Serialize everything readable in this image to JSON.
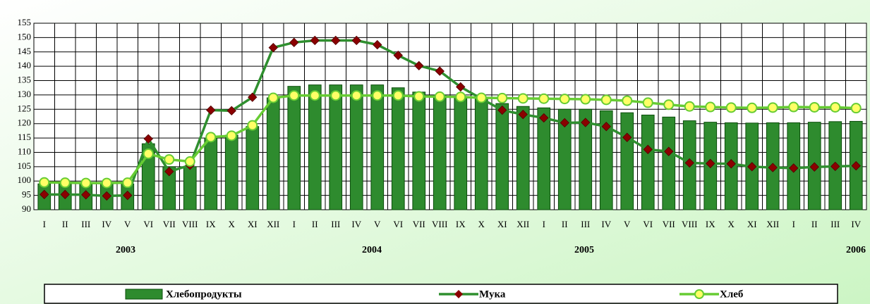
{
  "chart_data": {
    "type": "bar-line",
    "categories": [
      "I",
      "II",
      "III",
      "IV",
      "V",
      "VI",
      "VII",
      "VIII",
      "IX",
      "X",
      "XI",
      "XII",
      "I",
      "II",
      "III",
      "IV",
      "V",
      "VI",
      "VII",
      "VIII",
      "IX",
      "X",
      "XI",
      "XII",
      "I",
      "II",
      "III",
      "IV",
      "V",
      "VI",
      "VII",
      "VIII",
      "IX",
      "X",
      "XI",
      "XII",
      "I",
      "II",
      "III",
      "IV"
    ],
    "year_labels": [
      "2003",
      "2004",
      "2005",
      "2006"
    ],
    "ylim": [
      90,
      155
    ],
    "yticks": [
      90,
      95,
      100,
      105,
      110,
      115,
      120,
      125,
      130,
      135,
      140,
      145,
      150,
      155
    ],
    "grid": true,
    "series": [
      {
        "name": "Хлебопродукты",
        "type": "bar",
        "color": "#2e8b2e",
        "values": [
          99,
          99,
          99,
          99,
          99,
          113,
          105,
          105,
          115,
          116,
          119,
          129,
          133,
          133.5,
          133.5,
          133.5,
          133.5,
          132.5,
          131,
          130,
          129.5,
          129,
          127,
          126,
          125.5,
          125,
          125,
          124.5,
          123.8,
          123,
          122.3,
          121,
          120.5,
          120.3,
          120.2,
          120.3,
          120.3,
          120.5,
          120.7,
          120.8
        ]
      },
      {
        "name": "Мука",
        "type": "line",
        "color": "#2f8f2f",
        "marker_color": "#8b0000",
        "values": [
          95.3,
          95.3,
          95.2,
          94.8,
          95,
          114.7,
          103.3,
          105.5,
          124.7,
          124.5,
          129.2,
          146.5,
          148.3,
          149,
          149,
          149,
          147.5,
          143.8,
          140.2,
          138.3,
          132.8,
          128.7,
          124.7,
          123.2,
          122,
          120.3,
          120.4,
          119,
          115.2,
          111,
          110.3,
          106.3,
          106.1,
          106,
          105,
          104.7,
          104.5,
          104.9,
          105.1,
          105.3
        ]
      },
      {
        "name": "Хлеб",
        "type": "line",
        "color": "#66cc33",
        "marker_color": "#ffff66",
        "values": [
          99.5,
          99.4,
          99.3,
          99.3,
          99.4,
          109.5,
          107.5,
          106.8,
          115.3,
          115.8,
          119.4,
          129,
          129.8,
          129.8,
          129.8,
          129.8,
          129.8,
          129.8,
          129.5,
          129.4,
          129.3,
          129,
          128.9,
          128.8,
          128.7,
          128.6,
          128.5,
          128.3,
          128,
          127.3,
          126.6,
          126,
          125.8,
          125.6,
          125.5,
          125.6,
          125.8,
          125.7,
          125.7,
          125.4
        ]
      }
    ]
  }
}
